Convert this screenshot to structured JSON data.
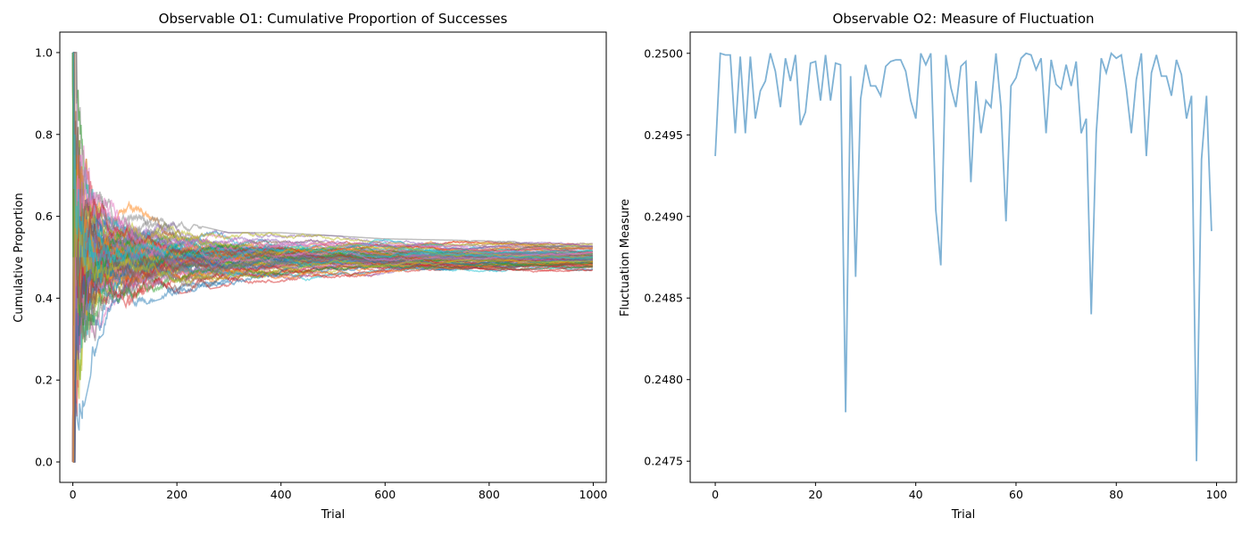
{
  "chart_data": [
    {
      "type": "line",
      "title": "Observable O1: Cumulative Proportion of Successes",
      "xlabel": "Trial",
      "ylabel": "Cumulative Proportion",
      "xlim": [
        -25,
        1025
      ],
      "ylim": [
        -0.05,
        1.05
      ],
      "xticks": [
        0,
        200,
        400,
        600,
        800,
        1000
      ],
      "yticks": [
        0.0,
        0.2,
        0.4,
        0.6,
        0.8,
        1.0
      ],
      "xtick_labels": [
        "0",
        "200",
        "400",
        "600",
        "800",
        "1000"
      ],
      "ytick_labels": [
        "0.0",
        "0.2",
        "0.4",
        "0.6",
        "0.8",
        "1.0"
      ],
      "n_trials": 1000,
      "n_series": 100,
      "grid": false,
      "legend": "none",
      "series_alpha": 0.5,
      "colors": [
        "#1f77b4",
        "#ff7f0e",
        "#2ca02c",
        "#d62728",
        "#9467bd",
        "#8c564b",
        "#e377c2",
        "#7f7f7f",
        "#bcbd22",
        "#17becf"
      ],
      "envelope": {
        "x": [
          0,
          50,
          100,
          150,
          200,
          300,
          400,
          600,
          800,
          1000
        ],
        "upper": [
          1.0,
          0.7,
          0.67,
          0.63,
          0.59,
          0.56,
          0.56,
          0.545,
          0.54,
          0.535
        ],
        "lower": [
          0.0,
          0.3,
          0.36,
          0.39,
          0.41,
          0.43,
          0.44,
          0.45,
          0.455,
          0.45
        ]
      },
      "converges_to": 0.5
    },
    {
      "type": "line",
      "title": "Observable O2: Measure of Fluctuation",
      "xlabel": "Trial",
      "ylabel": "Fluctuation Measure",
      "xlim": [
        -5,
        104
      ],
      "ylim": [
        0.24737,
        0.25013
      ],
      "xticks": [
        0,
        20,
        40,
        60,
        80,
        100
      ],
      "yticks": [
        0.2475,
        0.248,
        0.2485,
        0.249,
        0.2495,
        0.25
      ],
      "xtick_labels": [
        "0",
        "20",
        "40",
        "60",
        "80",
        "100"
      ],
      "ytick_labels": [
        "0.2475",
        "0.2480",
        "0.2485",
        "0.2490",
        "0.2495",
        "0.2500"
      ],
      "grid": false,
      "legend": "none",
      "line_color": "#7fb2d5",
      "series": [
        {
          "x": [
            0,
            1,
            2,
            3,
            4,
            5,
            6,
            7,
            8,
            9,
            10,
            11,
            12,
            13,
            14,
            15,
            16,
            17,
            18,
            19,
            20,
            21,
            22,
            23,
            24,
            25,
            26,
            27,
            28,
            29,
            30,
            31,
            32,
            33,
            34,
            35,
            36,
            37,
            38,
            39,
            40,
            41,
            42,
            43,
            44,
            45,
            46,
            47,
            48,
            49,
            50,
            51,
            52,
            53,
            54,
            55,
            56,
            57,
            58,
            59,
            60,
            61,
            62,
            63,
            64,
            65,
            66,
            67,
            68,
            69,
            70,
            71,
            72,
            73,
            74,
            75,
            76,
            77,
            78,
            79,
            80,
            81,
            82,
            83,
            84,
            85,
            86,
            87,
            88,
            89,
            90,
            91,
            92,
            93,
            94,
            95,
            96,
            97,
            98,
            99
          ],
          "values": [
            0.24937,
            0.25,
            0.24999,
            0.24999,
            0.24951,
            0.24998,
            0.24951,
            0.24998,
            0.2496,
            0.24977,
            0.24983,
            0.25,
            0.24989,
            0.24967,
            0.24997,
            0.24983,
            0.24999,
            0.24956,
            0.24964,
            0.24994,
            0.24995,
            0.24971,
            0.24999,
            0.24971,
            0.24994,
            0.24993,
            0.2478,
            0.24986,
            0.24863,
            0.24972,
            0.24993,
            0.2498,
            0.2498,
            0.24974,
            0.24992,
            0.24995,
            0.24996,
            0.24996,
            0.24989,
            0.24971,
            0.2496,
            0.25,
            0.24993,
            0.25,
            0.24904,
            0.2487,
            0.24999,
            0.24979,
            0.24967,
            0.24992,
            0.24995,
            0.24921,
            0.24983,
            0.24951,
            0.24971,
            0.24967,
            0.25,
            0.24967,
            0.24897,
            0.2498,
            0.24985,
            0.24997,
            0.25,
            0.24999,
            0.2499,
            0.24997,
            0.24951,
            0.24996,
            0.24981,
            0.24978,
            0.24993,
            0.2498,
            0.24995,
            0.24951,
            0.2496,
            0.2484,
            0.24951,
            0.24997,
            0.24988,
            0.25,
            0.24997,
            0.24999,
            0.24978,
            0.24951,
            0.24984,
            0.25,
            0.24937,
            0.24988,
            0.24999,
            0.24986,
            0.24986,
            0.24974,
            0.24996,
            0.24987,
            0.2496,
            0.24974,
            0.2475,
            0.24935,
            0.24974,
            0.24891
          ]
        }
      ]
    }
  ]
}
